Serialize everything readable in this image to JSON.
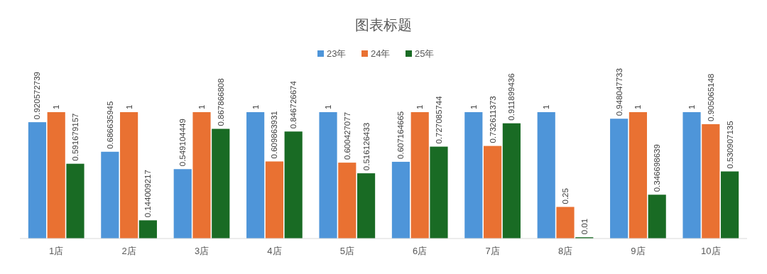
{
  "chart_data": {
    "type": "bar",
    "title": "图表标题",
    "categories": [
      "1店",
      "2店",
      "3店",
      "4店",
      "5店",
      "6店",
      "7店",
      "8店",
      "9店",
      "10店"
    ],
    "series": [
      {
        "name": "23年",
        "color": "#4e95d9",
        "values": [
          0.920572739,
          0.686635945,
          0.549104449,
          1,
          1,
          0.607164665,
          1,
          1,
          0.948047733,
          1
        ]
      },
      {
        "name": "24年",
        "color": "#e97132",
        "values": [
          1,
          1,
          1,
          0.609863931,
          0.600427077,
          1,
          0.732611373,
          0.25,
          1,
          0.905065148
        ]
      },
      {
        "name": "25年",
        "color": "#196b24",
        "values": [
          0.591679157,
          0.144009217,
          0.867866808,
          0.846726674,
          0.516126433,
          0.727085744,
          0.911899436,
          0.01,
          0.346698639,
          0.530907135
        ]
      }
    ],
    "data_labels": true,
    "legend": "top",
    "grid": false
  }
}
